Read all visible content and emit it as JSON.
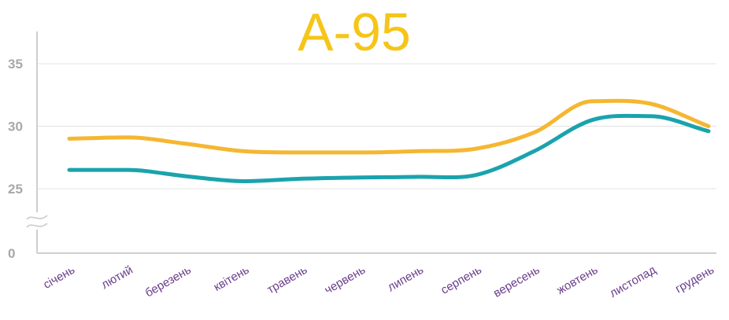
{
  "chart_data": {
    "type": "line",
    "title": "А-95",
    "xlabel": "",
    "ylabel": "",
    "categories": [
      "січень",
      "лютий",
      "березень",
      "квітень",
      "травень",
      "червень",
      "липень",
      "серпень",
      "вересень",
      "жовтень",
      "листопад",
      "грудень"
    ],
    "series": [
      {
        "color": "#f5b731",
        "values": [
          29.0,
          29.1,
          28.6,
          28.0,
          27.9,
          27.9,
          28.0,
          28.2,
          29.5,
          32.0,
          31.8,
          30.0
        ]
      },
      {
        "color": "#1aa3ad",
        "values": [
          26.5,
          26.5,
          26.0,
          25.6,
          25.8,
          25.9,
          25.95,
          26.1,
          28.0,
          30.5,
          30.8,
          29.6
        ]
      }
    ],
    "yticks": [
      "35",
      "30",
      "25",
      "0"
    ],
    "ylim": [
      0,
      37
    ],
    "y_axis_break": true,
    "grid": true,
    "colors": {
      "title": "#f5c518",
      "tick_y": "#a8a8a8",
      "tick_x": "#6a3d8c",
      "axis": "#cfcfcf",
      "grid": "#e3e3e3"
    }
  }
}
